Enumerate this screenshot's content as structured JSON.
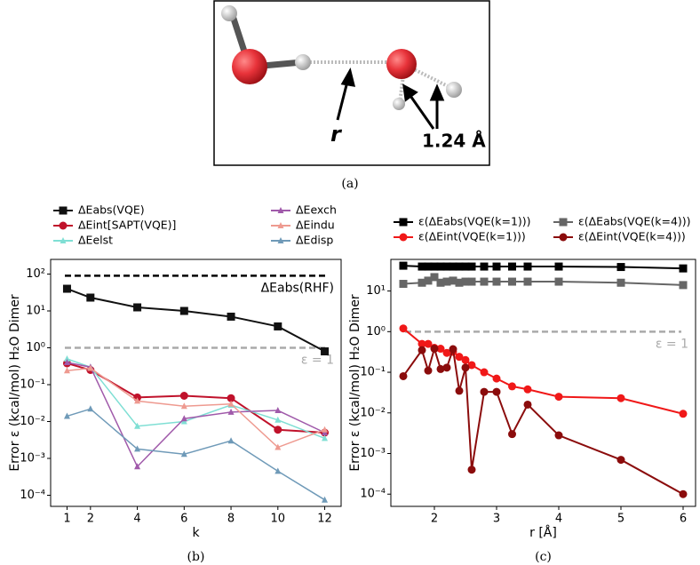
{
  "diagram": {
    "labels": [
      "r",
      "1.24 Å"
    ],
    "caption": "(a)"
  },
  "chart_data": [
    {
      "type": "line",
      "caption": "(b)",
      "xlabel": "k",
      "ylabel": "Error ε (kcal/mol) H₂O Dimer",
      "log_y": true,
      "legend": "above",
      "legend_columns": 2,
      "x": [
        1,
        2,
        4,
        6,
        8,
        10,
        12
      ],
      "xlim": [
        0.3,
        12.7
      ],
      "xticks": [
        1,
        2,
        4,
        6,
        8,
        10,
        12
      ],
      "ylim": [
        5e-05,
        250
      ],
      "yticks": [
        {
          "value": 0.0001,
          "label": "10⁻⁴"
        },
        {
          "value": 0.001,
          "label": "10⁻³"
        },
        {
          "value": 0.01,
          "label": "10⁻²"
        },
        {
          "value": 0.1,
          "label": "10⁻¹"
        },
        {
          "value": 1,
          "label": "10⁰"
        },
        {
          "value": 10,
          "label": "10¹"
        },
        {
          "value": 100,
          "label": "10²"
        }
      ],
      "series": [
        {
          "name": "ΔEabs(VQE)",
          "color": "#111111",
          "marker": "square",
          "values": [
            40,
            23,
            12.5,
            10,
            7,
            3.8,
            0.8
          ]
        },
        {
          "name": "ΔEint[SAPT(VQE)]",
          "color": "#c0122b",
          "marker": "circle",
          "values": [
            0.38,
            0.25,
            0.045,
            0.05,
            0.043,
            0.006,
            0.005
          ]
        },
        {
          "name": "ΔEelst",
          "color": "#7fdfd4",
          "marker": "triangle",
          "values": [
            0.5,
            0.3,
            0.0075,
            0.01,
            0.028,
            0.011,
            0.0035
          ]
        },
        {
          "name": "ΔEexch",
          "color": "#a05aaa",
          "marker": "triangle",
          "values": [
            0.4,
            0.3,
            0.0006,
            0.012,
            0.018,
            0.02,
            0.005
          ]
        },
        {
          "name": "ΔEindu",
          "color": "#ee9a90",
          "marker": "triangle",
          "values": [
            0.24,
            0.28,
            0.036,
            0.026,
            0.03,
            0.002,
            0.006
          ]
        },
        {
          "name": "ΔEdisp",
          "color": "#6f9ab8",
          "marker": "triangle",
          "values": [
            0.014,
            0.022,
            0.0018,
            0.0013,
            0.003,
            0.00045,
            7.5e-05
          ]
        }
      ],
      "reference_lines": [
        {
          "value": 90,
          "label": "ΔEabs(RHF)",
          "color": "#000000"
        },
        {
          "value": 1,
          "label": "ε = 1",
          "color": "#aaaaaa"
        }
      ]
    },
    {
      "type": "line",
      "caption": "(c)",
      "xlabel": "r [Å]",
      "ylabel": "Error ε (kcal/mol) H₂O Dimer",
      "log_y": true,
      "legend": "above",
      "legend_columns": 2,
      "x": [
        1.5,
        1.8,
        1.9,
        2.0,
        2.1,
        2.2,
        2.3,
        2.4,
        2.5,
        2.6,
        2.8,
        3.0,
        3.25,
        3.5,
        4.0,
        5.0,
        6.0
      ],
      "xlim": [
        1.3,
        6.2
      ],
      "xticks": [
        2,
        3,
        4,
        5,
        6
      ],
      "ylim": [
        5e-05,
        60
      ],
      "yticks": [
        {
          "value": 0.0001,
          "label": "10⁻⁴"
        },
        {
          "value": 0.001,
          "label": "10⁻³"
        },
        {
          "value": 0.01,
          "label": "10⁻²"
        },
        {
          "value": 0.1,
          "label": "10⁻¹"
        },
        {
          "value": 1,
          "label": "10⁰"
        },
        {
          "value": 10,
          "label": "10¹"
        }
      ],
      "series": [
        {
          "name": "ε(ΔEabs(VQE(k=1)))",
          "color": "#000000",
          "marker": "square",
          "values": [
            42,
            40,
            40,
            40,
            40,
            40,
            40,
            40,
            40,
            40,
            40,
            40,
            40,
            40,
            40,
            39,
            36
          ]
        },
        {
          "name": "ε(ΔEint(VQE(k=1)))",
          "color": "#f01818",
          "marker": "circle",
          "values": [
            1.2,
            0.5,
            0.5,
            0.4,
            0.38,
            0.3,
            0.32,
            0.24,
            0.2,
            0.15,
            0.1,
            0.07,
            0.045,
            0.038,
            0.025,
            0.023,
            0.0095
          ]
        },
        {
          "name": "ε(ΔEabs(VQE(k=4)))",
          "color": "#666666",
          "marker": "square",
          "values": [
            15,
            16,
            18,
            22,
            16,
            17,
            18,
            16,
            17,
            17,
            17,
            17,
            17,
            17,
            17,
            16,
            14
          ]
        },
        {
          "name": "ε(ΔEint(VQE(k=4)))",
          "color": "#8b0c0c",
          "marker": "circle",
          "values": [
            0.08,
            0.35,
            0.11,
            0.38,
            0.12,
            0.13,
            0.37,
            0.035,
            0.13,
            0.0004,
            0.033,
            0.033,
            0.003,
            0.016,
            0.0028,
            0.0007,
            0.0001
          ]
        }
      ],
      "reference_lines": [
        {
          "value": 1,
          "label": "ε = 1",
          "color": "#aaaaaa"
        }
      ]
    }
  ]
}
